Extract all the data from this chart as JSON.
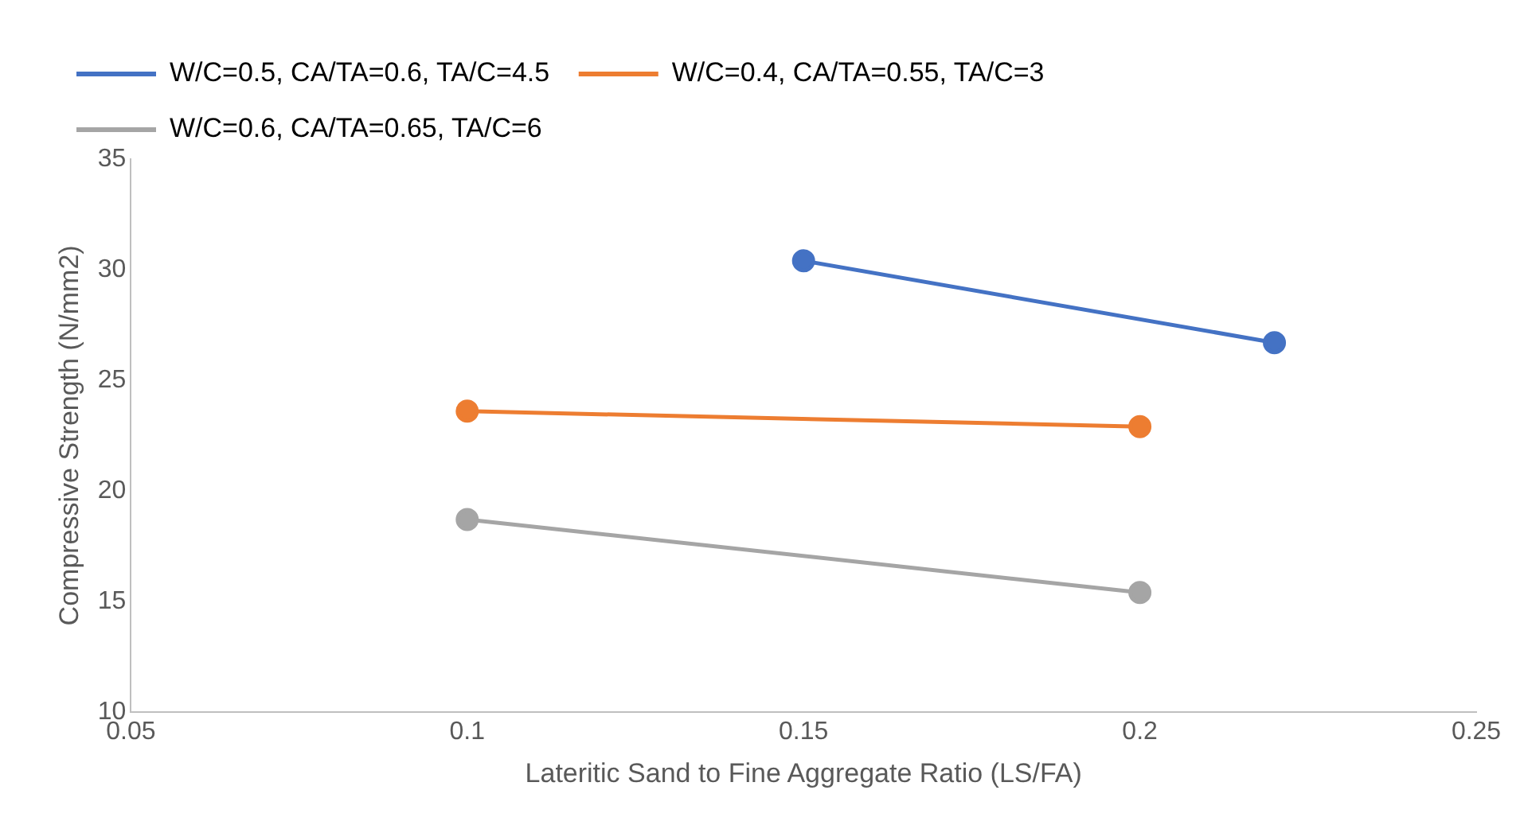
{
  "chart_data": {
    "type": "line",
    "xlabel": "Lateritic Sand to Fine Aggregate Ratio (LS/FA)",
    "ylabel": "Compressive Strength (N/mm2)",
    "xlim": [
      0.05,
      0.25
    ],
    "xticks": [
      0.05,
      0.1,
      0.15,
      0.2,
      0.25
    ],
    "ylim": [
      10,
      35
    ],
    "yticks": [
      10,
      15,
      20,
      25,
      30,
      35
    ],
    "grid": false,
    "legend": "top",
    "marker": "circle",
    "line_style": "solid",
    "series": [
      {
        "name": "W/C=0.5, CA/TA=0.6, TA/C=4.5",
        "color": "#4472c4",
        "x": [
          0.15,
          0.22
        ],
        "values": [
          30.4,
          26.7
        ]
      },
      {
        "name": "W/C=0.4, CA/TA=0.55, TA/C=3",
        "color": "#ed7d31",
        "x": [
          0.1,
          0.2
        ],
        "values": [
          23.6,
          22.9
        ]
      },
      {
        "name": "W/C=0.6, CA/TA=0.65, TA/C=6",
        "color": "#a5a5a5",
        "x": [
          0.1,
          0.2
        ],
        "values": [
          18.7,
          15.4
        ]
      }
    ]
  }
}
